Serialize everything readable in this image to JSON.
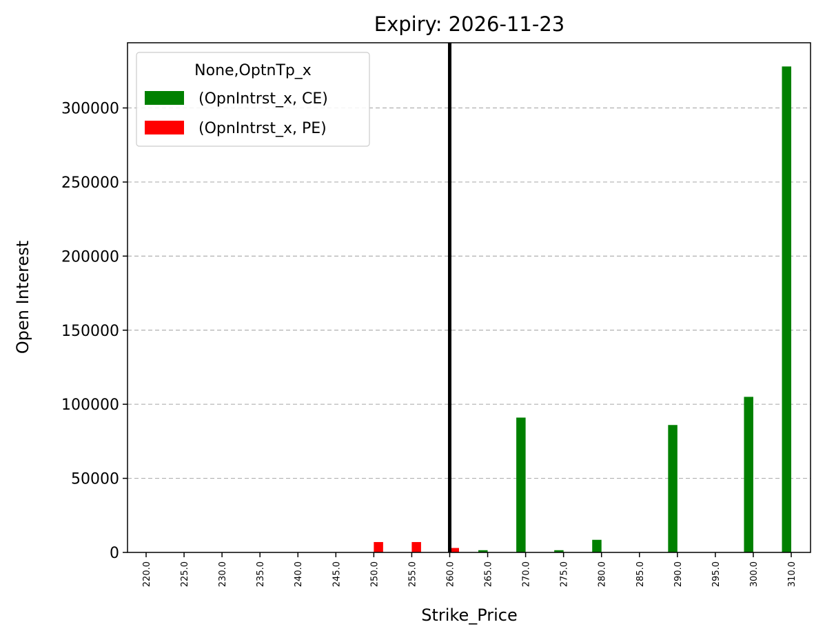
{
  "chart_data": {
    "type": "bar",
    "title": "Expiry: 2026-11-23",
    "xlabel": "Strike_Price",
    "ylabel": "Open Interest",
    "categories": [
      "220.0",
      "225.0",
      "230.0",
      "235.0",
      "240.0",
      "245.0",
      "250.0",
      "255.0",
      "260.0",
      "265.0",
      "270.0",
      "275.0",
      "280.0",
      "285.0",
      "290.0",
      "295.0",
      "300.0",
      "310.0"
    ],
    "series": [
      {
        "name": "(OpnIntrst_x, CE)",
        "color": "#008000",
        "values": [
          0,
          0,
          0,
          0,
          0,
          0,
          0,
          0,
          0,
          1500,
          91000,
          1500,
          8500,
          0,
          86000,
          0,
          105000,
          328000
        ]
      },
      {
        "name": "(OpnIntrst_x, PE)",
        "color": "#ff0000",
        "values": [
          0,
          0,
          0,
          0,
          0,
          0,
          7000,
          7000,
          3000,
          0,
          0,
          0,
          0,
          0,
          0,
          0,
          0,
          0
        ]
      }
    ],
    "yticks": [
      "0",
      "50000",
      "100000",
      "150000",
      "200000",
      "250000",
      "300000"
    ],
    "ylim": [
      0,
      344000
    ],
    "vertical_line": {
      "category": "260.0",
      "color": "#000000"
    },
    "grid": "y dashed",
    "legend": {
      "title": "None,OptnTp_x",
      "position": "top-left"
    }
  }
}
